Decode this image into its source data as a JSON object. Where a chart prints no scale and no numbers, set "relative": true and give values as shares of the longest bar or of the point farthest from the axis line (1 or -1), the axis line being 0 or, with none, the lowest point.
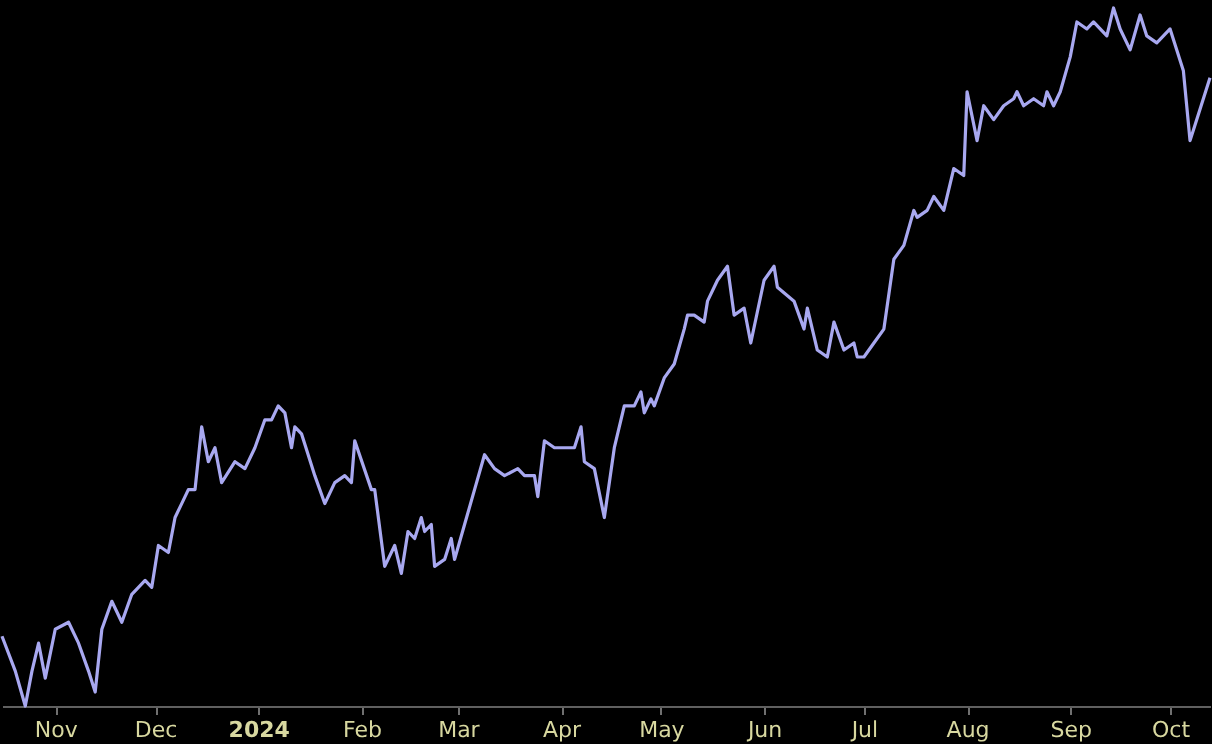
{
  "chart_data": {
    "type": "line",
    "relative": true,
    "grid": false,
    "marker": "none",
    "line_style": "solid",
    "xlim": [
      "2023-10-16",
      "2024-10-13"
    ],
    "xticks": [
      {
        "value": "2023-11-01",
        "label": "Nov"
      },
      {
        "value": "2023-12-01",
        "label": "Dec"
      },
      {
        "value": "2024-01-01",
        "label": "2024"
      },
      {
        "value": "2024-02-01",
        "label": "Feb"
      },
      {
        "value": "2024-03-01",
        "label": "Mar"
      },
      {
        "value": "2024-04-01",
        "label": "Apr"
      },
      {
        "value": "2024-05-01",
        "label": "May"
      },
      {
        "value": "2024-06-01",
        "label": "Jun"
      },
      {
        "value": "2024-07-01",
        "label": "Jul"
      },
      {
        "value": "2024-08-01",
        "label": "Aug"
      },
      {
        "value": "2024-09-01",
        "label": "Sep"
      },
      {
        "value": "2024-10-01",
        "label": "Oct"
      }
    ],
    "x": [
      "2023-10-16",
      "2023-10-20",
      "2023-10-23",
      "2023-10-25",
      "2023-10-27",
      "2023-10-29",
      "2023-11-01",
      "2023-11-05",
      "2023-11-08",
      "2023-11-11",
      "2023-11-13",
      "2023-11-15",
      "2023-11-18",
      "2023-11-21",
      "2023-11-24",
      "2023-11-28",
      "2023-11-30",
      "2023-12-02",
      "2023-12-05",
      "2023-12-07",
      "2023-12-09",
      "2023-12-11",
      "2023-12-13",
      "2023-12-15",
      "2023-12-17",
      "2023-12-19",
      "2023-12-21",
      "2023-12-25",
      "2023-12-28",
      "2023-12-31",
      "2024-01-03",
      "2024-01-05",
      "2024-01-07",
      "2024-01-09",
      "2024-01-11",
      "2024-01-12",
      "2024-01-14",
      "2024-01-18",
      "2024-01-21",
      "2024-01-24",
      "2024-01-27",
      "2024-01-29",
      "2024-01-30",
      "2024-02-04",
      "2024-02-05",
      "2024-02-08",
      "2024-02-11",
      "2024-02-13",
      "2024-02-15",
      "2024-02-17",
      "2024-02-19",
      "2024-02-20",
      "2024-02-22",
      "2024-02-23",
      "2024-02-26",
      "2024-02-28",
      "2024-02-29",
      "2024-03-03",
      "2024-03-06",
      "2024-03-09",
      "2024-03-12",
      "2024-03-15",
      "2024-03-19",
      "2024-03-21",
      "2024-03-24",
      "2024-03-25",
      "2024-03-27",
      "2024-03-30",
      "2024-04-02",
      "2024-04-05",
      "2024-04-07",
      "2024-04-08",
      "2024-04-11",
      "2024-04-14",
      "2024-04-17",
      "2024-04-20",
      "2024-04-23",
      "2024-04-25",
      "2024-04-26",
      "2024-04-28",
      "2024-04-29",
      "2024-05-02",
      "2024-05-05",
      "2024-05-08",
      "2024-05-09",
      "2024-05-11",
      "2024-05-14",
      "2024-05-15",
      "2024-05-18",
      "2024-05-21",
      "2024-05-23",
      "2024-05-26",
      "2024-05-28",
      "2024-06-01",
      "2024-06-04",
      "2024-06-05",
      "2024-06-10",
      "2024-06-13",
      "2024-06-14",
      "2024-06-17",
      "2024-06-20",
      "2024-06-22",
      "2024-06-25",
      "2024-06-28",
      "2024-06-29",
      "2024-07-01",
      "2024-07-04",
      "2024-07-07",
      "2024-07-10",
      "2024-07-13",
      "2024-07-16",
      "2024-07-17",
      "2024-07-20",
      "2024-07-22",
      "2024-07-25",
      "2024-07-28",
      "2024-07-31",
      "2024-08-01",
      "2024-08-04",
      "2024-08-06",
      "2024-08-09",
      "2024-08-12",
      "2024-08-15",
      "2024-08-16",
      "2024-08-18",
      "2024-08-21",
      "2024-08-24",
      "2024-08-25",
      "2024-08-27",
      "2024-08-29",
      "2024-09-01",
      "2024-09-03",
      "2024-09-06",
      "2024-09-08",
      "2024-09-12",
      "2024-09-14",
      "2024-09-16",
      "2024-09-19",
      "2024-09-22",
      "2024-09-24",
      "2024-09-27",
      "2024-09-29",
      "2024-10-01",
      "2024-10-05",
      "2024-10-07",
      "2024-10-09",
      "2024-10-13"
    ],
    "series": [
      {
        "color": "#a8a8f0",
        "values": [
          0.1,
          0.05,
          0,
          0.05,
          0.09,
          0.04,
          0.11,
          0.12,
          0.09,
          0.05,
          0.02,
          0.11,
          0.15,
          0.12,
          0.16,
          0.18,
          0.17,
          0.23,
          0.22,
          0.27,
          0.29,
          0.31,
          0.31,
          0.4,
          0.35,
          0.37,
          0.32,
          0.35,
          0.34,
          0.37,
          0.41,
          0.41,
          0.43,
          0.42,
          0.37,
          0.4,
          0.39,
          0.33,
          0.29,
          0.32,
          0.33,
          0.32,
          0.38,
          0.31,
          0.31,
          0.2,
          0.23,
          0.19,
          0.25,
          0.24,
          0.27,
          0.25,
          0.26,
          0.2,
          0.21,
          0.24,
          0.21,
          0.26,
          0.31,
          0.36,
          0.34,
          0.33,
          0.34,
          0.33,
          0.33,
          0.3,
          0.38,
          0.37,
          0.37,
          0.37,
          0.4,
          0.35,
          0.34,
          0.27,
          0.37,
          0.43,
          0.43,
          0.45,
          0.42,
          0.44,
          0.43,
          0.47,
          0.49,
          0.54,
          0.56,
          0.56,
          0.55,
          0.58,
          0.61,
          0.63,
          0.56,
          0.57,
          0.52,
          0.61,
          0.63,
          0.6,
          0.58,
          0.54,
          0.57,
          0.51,
          0.5,
          0.55,
          0.51,
          0.52,
          0.5,
          0.5,
          0.52,
          0.54,
          0.64,
          0.66,
          0.71,
          0.7,
          0.71,
          0.73,
          0.71,
          0.77,
          0.76,
          0.88,
          0.81,
          0.86,
          0.84,
          0.86,
          0.87,
          0.88,
          0.86,
          0.87,
          0.86,
          0.88,
          0.86,
          0.88,
          0.93,
          0.98,
          0.97,
          0.98,
          0.96,
          1,
          0.97,
          0.94,
          0.99,
          0.96,
          0.95,
          0.96,
          0.97,
          0.91,
          0.81,
          0.84,
          0.9
        ]
      }
    ]
  }
}
